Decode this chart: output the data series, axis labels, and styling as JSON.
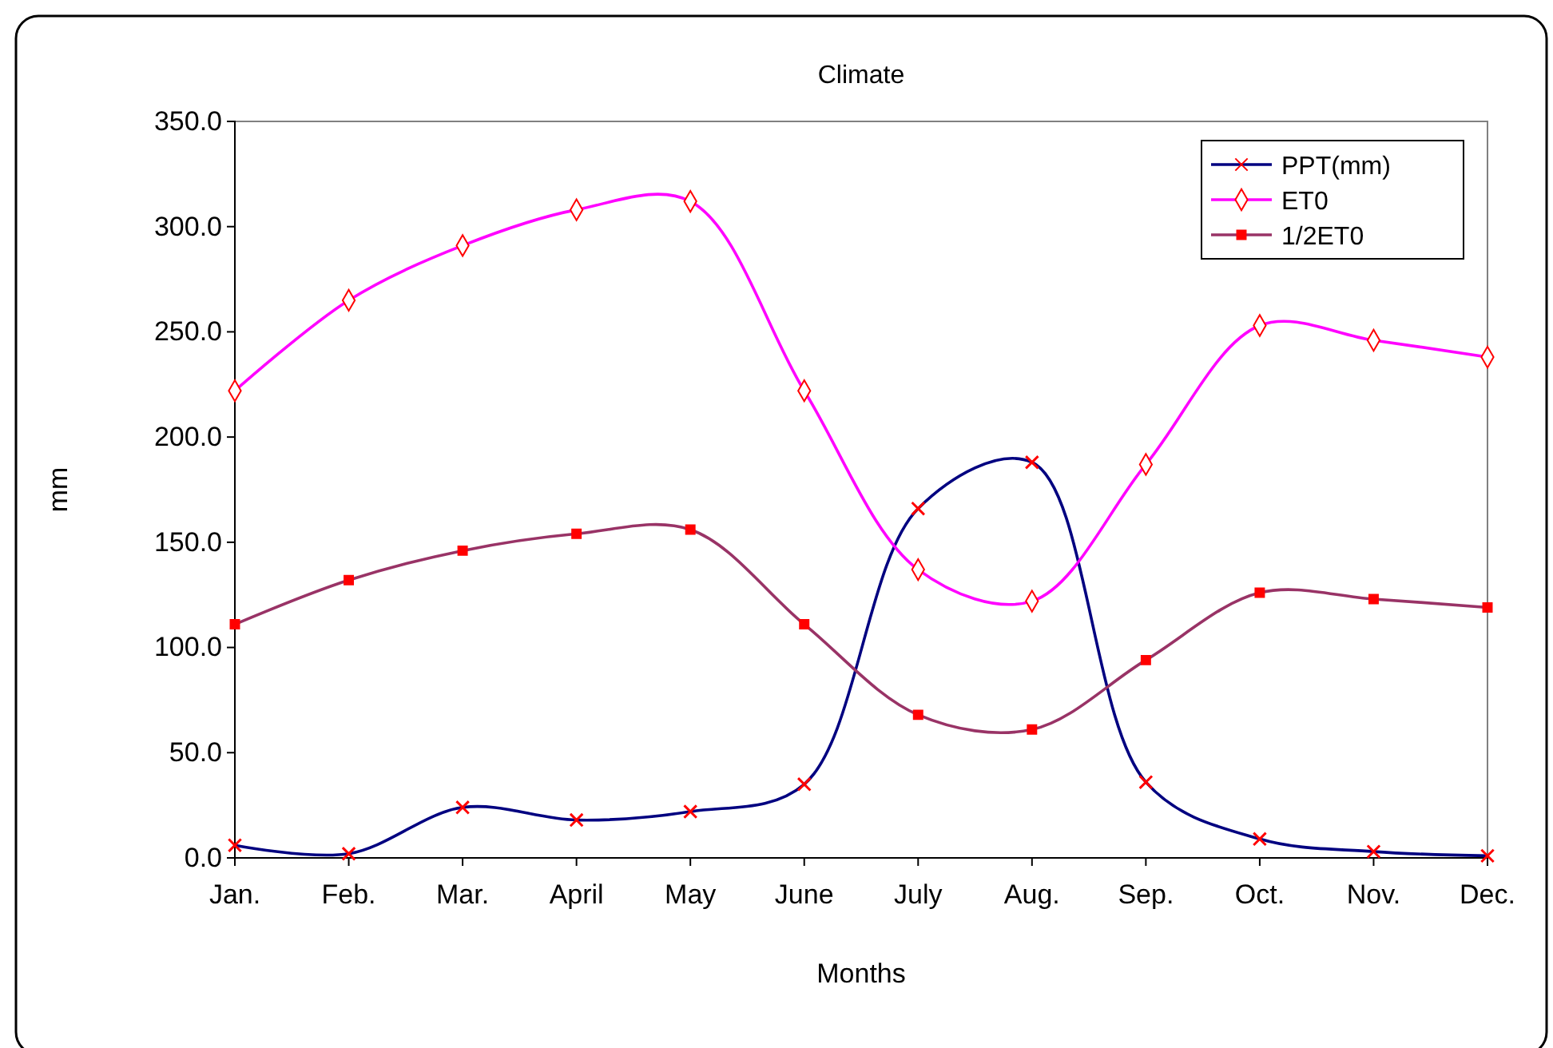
{
  "chart_data": {
    "type": "line",
    "title": "Climate",
    "xlabel": "Months",
    "ylabel": "mm",
    "categories": [
      "Jan.",
      "Feb.",
      "Mar.",
      "April",
      "May",
      "June",
      "July",
      "Aug.",
      "Sep.",
      "Oct.",
      "Nov.",
      "Dec."
    ],
    "series": [
      {
        "name": "PPT(mm)",
        "color": "#000080",
        "marker": "cross",
        "values": [
          6,
          2,
          24,
          18,
          22,
          35,
          166,
          188,
          36,
          9,
          3,
          1
        ]
      },
      {
        "name": "ET0",
        "color": "#ff00ff",
        "marker": "diamond",
        "values": [
          222,
          265,
          291,
          308,
          312,
          222,
          137,
          122,
          187,
          253,
          246,
          238
        ]
      },
      {
        "name": "1/2ET0",
        "color": "#993366",
        "marker": "square",
        "values": [
          111,
          132,
          146,
          154,
          156,
          111,
          68,
          61,
          94,
          126,
          123,
          119
        ]
      }
    ],
    "ylim": [
      0,
      350
    ],
    "yticks": [
      {
        "value": 0,
        "label": "0.0"
      },
      {
        "value": 50,
        "label": "50.0"
      },
      {
        "value": 100,
        "label": "100.0"
      },
      {
        "value": 150,
        "label": "150.0"
      },
      {
        "value": 200,
        "label": "200.0"
      },
      {
        "value": 250,
        "label": "250.0"
      },
      {
        "value": 300,
        "label": "300.0"
      },
      {
        "value": 350,
        "label": "350.0"
      }
    ],
    "grid": false,
    "legend": "top right",
    "line_style": "solid"
  }
}
